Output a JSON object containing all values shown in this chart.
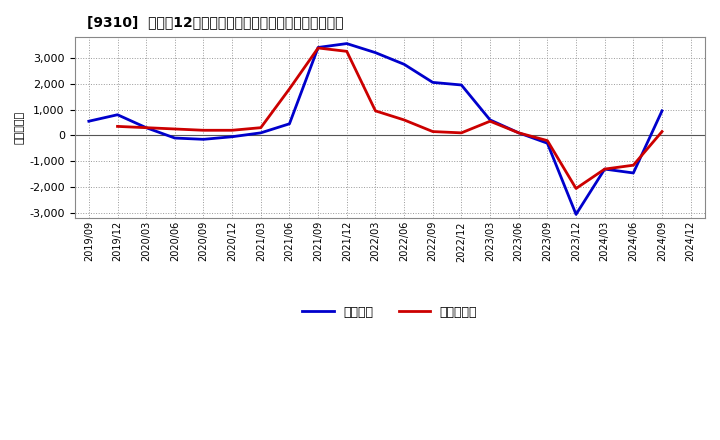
{
  "title": "[9310]  利益だ12か月移動合計の対前年同期増減額の推移",
  "ylabel": "（百万円）",
  "background_color": "#ffffff",
  "plot_bg_color": "#ffffff",
  "grid_color": "#aaaaaa",
  "x_labels": [
    "2019/09",
    "2019/12",
    "2020/03",
    "2020/06",
    "2020/09",
    "2020/12",
    "2021/03",
    "2021/06",
    "2021/09",
    "2021/12",
    "2022/03",
    "2022/06",
    "2022/09",
    "2022/12",
    "2023/03",
    "2023/06",
    "2023/09",
    "2023/12",
    "2024/03",
    "2024/06",
    "2024/09",
    "2024/12"
  ],
  "blue_line": [
    550,
    800,
    300,
    -100,
    -150,
    -50,
    100,
    450,
    3400,
    3550,
    3200,
    2750,
    2050,
    1950,
    600,
    100,
    -300,
    -3050,
    -1300,
    -1450,
    950,
    null
  ],
  "red_line": [
    null,
    350,
    300,
    250,
    200,
    200,
    300,
    1800,
    3380,
    3250,
    950,
    600,
    150,
    100,
    550,
    100,
    -200,
    -2050,
    -1300,
    -1150,
    150,
    null
  ],
  "ylim": [
    -3200,
    3800
  ],
  "yticks": [
    -3000,
    -2000,
    -1000,
    0,
    1000,
    2000,
    3000
  ],
  "legend_blue": "経常利益",
  "legend_red": "当期純利益",
  "line_width": 2.0
}
